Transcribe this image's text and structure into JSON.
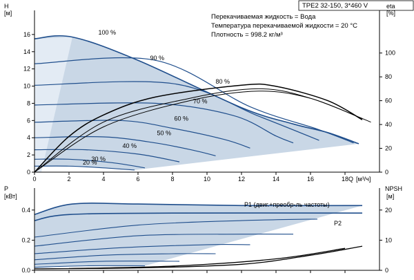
{
  "colors": {
    "curve": "#1f4e8c",
    "area": "#c9d7e6",
    "area_light": "#e3ebf4",
    "efficiency": "#000000"
  },
  "header": {
    "model": "TPE2 32-150, 3*460 V",
    "info_lines": [
      "Перекачиваемая жидкость = Вода",
      "Температура перекачиваемой жидкости = 20 °C",
      "Плотность = 998.2 кг/м³"
    ]
  },
  "chart_data": [
    {
      "type": "line",
      "name": "head",
      "ylabel": "H",
      "yunit": "[м]",
      "y2label": "eta",
      "y2unit": "[%]",
      "xlabel": "Q",
      "xunit": "[м³/ч]",
      "xlim": [
        0,
        20
      ],
      "ylim": [
        0,
        18
      ],
      "y2lim": [
        0,
        130
      ],
      "xticks": [
        "0",
        "2",
        "4",
        "6",
        "8",
        "10",
        "12",
        "14",
        "16",
        "18"
      ],
      "yticks": [
        "0",
        "2",
        "4",
        "6",
        "8",
        "10",
        "12",
        "14",
        "16"
      ],
      "y2ticks": [
        "0",
        "20",
        "40",
        "60",
        "80",
        "100"
      ],
      "grid": false,
      "speed_labels": [
        {
          "text": "100 %",
          "q": 3.7,
          "h": 16.0
        },
        {
          "text": "90 %",
          "q": 6.7,
          "h": 13.0
        },
        {
          "text": "80 %",
          "q": 10.5,
          "h": 10.3
        },
        {
          "text": "70 %",
          "q": 9.2,
          "h": 8.0
        },
        {
          "text": "60 %",
          "q": 8.1,
          "h": 6.0
        },
        {
          "text": "50 %",
          "q": 7.1,
          "h": 4.3
        },
        {
          "text": "40 %",
          "q": 5.1,
          "h": 2.8
        },
        {
          "text": "30 %",
          "q": 3.3,
          "h": 1.3
        },
        {
          "text": "20 %",
          "q": 2.8,
          "h": 0.9
        }
      ],
      "series": [
        {
          "pct": 100,
          "values": [
            [
              0,
              15.5
            ],
            [
              2.2,
              15.7
            ],
            [
              6,
              13.0
            ],
            [
              12,
              7.5
            ],
            [
              15,
              5.6
            ],
            [
              17,
              4.6
            ],
            [
              18.8,
              3.3
            ]
          ]
        },
        {
          "pct": 90,
          "values": [
            [
              0,
              12.6
            ],
            [
              7,
              13.0
            ],
            [
              12.5,
              7.6
            ],
            [
              16.4,
              5.0
            ],
            [
              18.5,
              3.4
            ]
          ]
        },
        {
          "pct": 80,
          "values": [
            [
              0,
              10.1
            ],
            [
              8,
              10.3
            ],
            [
              13,
              6.5
            ],
            [
              16.5,
              3.7
            ]
          ]
        },
        {
          "pct": 70,
          "values": [
            [
              0,
              7.8
            ],
            [
              7,
              8.0
            ],
            [
              11.5,
              6.6
            ],
            [
              14,
              4.2
            ],
            [
              15,
              3.4
            ]
          ]
        },
        {
          "pct": 60,
          "values": [
            [
              0,
              5.8
            ],
            [
              5,
              6.0
            ],
            [
              8,
              5.1
            ],
            [
              11,
              3.8
            ],
            [
              12.5,
              2.8
            ]
          ]
        },
        {
          "pct": 50,
          "values": [
            [
              0,
              4.0
            ],
            [
              4,
              4.1
            ],
            [
              7,
              3.4
            ],
            [
              9.3,
              2.5
            ],
            [
              10.5,
              1.9
            ]
          ]
        },
        {
          "pct": 40,
          "values": [
            [
              0,
              2.6
            ],
            [
              3,
              2.6
            ],
            [
              6,
              2.1
            ],
            [
              8.4,
              1.2
            ]
          ]
        },
        {
          "pct": 30,
          "values": [
            [
              0,
              1.5
            ],
            [
              2,
              1.5
            ],
            [
              4.5,
              1.1
            ],
            [
              6.4,
              0.5
            ]
          ]
        },
        {
          "pct": 20,
          "values": [
            [
              0,
              0.7
            ],
            [
              2,
              0.7
            ],
            [
              4,
              0.5
            ],
            [
              5.8,
              0.25
            ]
          ]
        }
      ],
      "efficiency_curves": [
        {
          "values": [
            [
              0,
              0
            ],
            [
              4,
              42
            ],
            [
              9,
              62
            ],
            [
              13,
              70
            ],
            [
              16,
              62
            ],
            [
              19.5,
              42
            ]
          ]
        },
        {
          "values": [
            [
              0,
              0
            ],
            [
              4,
              38
            ],
            [
              9,
              60
            ],
            [
              13,
              68
            ],
            [
              16,
              62
            ],
            [
              19,
              45
            ]
          ]
        },
        {
          "values": [
            [
              0,
              0
            ],
            [
              2,
              30
            ],
            [
              4,
              48
            ],
            [
              7,
              63
            ],
            [
              12,
              73
            ],
            [
              14,
              72
            ],
            [
              17,
              60
            ],
            [
              19,
              44
            ]
          ]
        }
      ]
    },
    {
      "type": "line",
      "name": "power",
      "ylabel": "P",
      "yunit": "[кВт]",
      "y2label": "NPSH",
      "y2unit": "[м]",
      "xlim": [
        0,
        20
      ],
      "ylim": [
        0,
        0.5
      ],
      "y2lim": [
        0,
        25
      ],
      "yticks": [
        "0.0",
        "0.2",
        "0.4"
      ],
      "y2ticks": [
        "0",
        "10",
        "20"
      ],
      "grid": false,
      "series": [
        {
          "name": "P1 (двиг.+преобр-ль частоты)",
          "values": [
            [
              0,
              0.37
            ],
            [
              2.2,
              0.44
            ],
            [
              6,
              0.44
            ],
            [
              12,
              0.43
            ],
            [
              19,
              0.43
            ]
          ]
        },
        {
          "name": "P2",
          "values": [
            [
              0,
              0.33
            ],
            [
              2,
              0.37
            ],
            [
              8,
              0.38
            ],
            [
              19,
              0.38
            ]
          ]
        },
        {
          "values": [
            [
              0,
              0.22
            ],
            [
              6,
              0.3
            ],
            [
              12,
              0.33
            ],
            [
              16.4,
              0.34
            ]
          ]
        },
        {
          "values": [
            [
              0,
              0.16
            ],
            [
              6,
              0.23
            ],
            [
              12,
              0.24
            ],
            [
              15,
              0.24
            ]
          ]
        },
        {
          "values": [
            [
              0,
              0.11
            ],
            [
              5,
              0.15
            ],
            [
              10,
              0.17
            ],
            [
              12.5,
              0.17
            ]
          ]
        },
        {
          "values": [
            [
              0,
              0.07
            ],
            [
              4,
              0.1
            ],
            [
              8,
              0.11
            ],
            [
              10.5,
              0.11
            ]
          ]
        },
        {
          "values": [
            [
              0,
              0.04
            ],
            [
              4,
              0.06
            ],
            [
              8.4,
              0.06
            ]
          ]
        },
        {
          "values": [
            [
              0,
              0.02
            ],
            [
              3,
              0.03
            ],
            [
              6.4,
              0.03
            ]
          ]
        }
      ],
      "npsh_curves": [
        {
          "values": [
            [
              0,
              0.5
            ],
            [
              6,
              0.8
            ],
            [
              12,
              2
            ],
            [
              16,
              5
            ],
            [
              19,
              8
            ]
          ]
        },
        {
          "values": [
            [
              2,
              0.6
            ],
            [
              8,
              1.4
            ],
            [
              14,
              3.8
            ],
            [
              18,
              7.3
            ]
          ]
        }
      ]
    }
  ]
}
